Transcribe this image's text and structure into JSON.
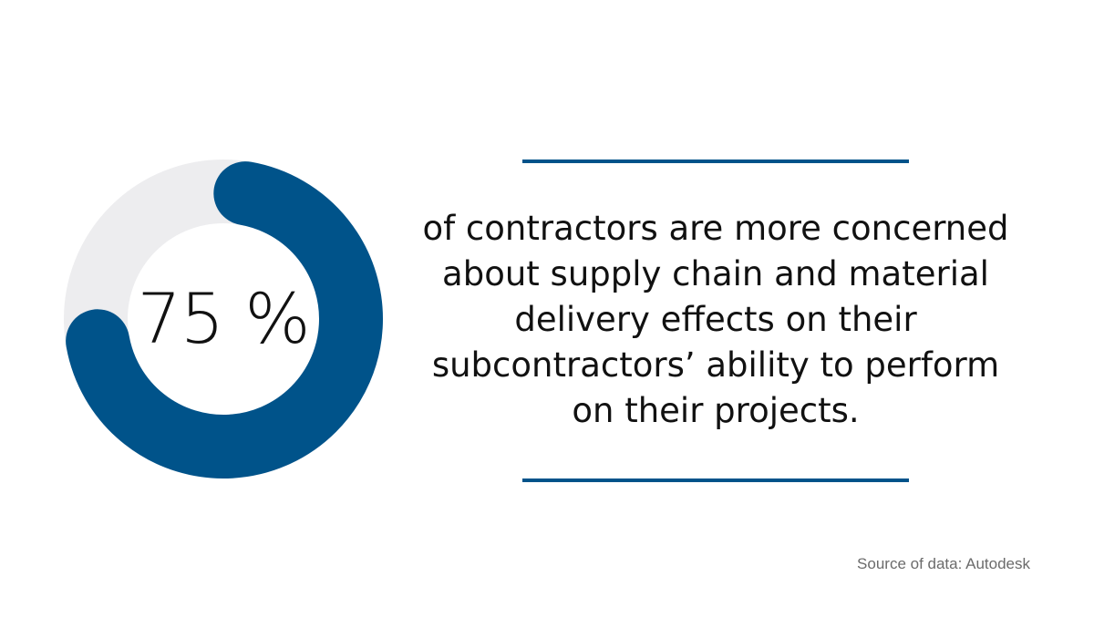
{
  "chart_data": {
    "type": "pie",
    "value_label": "75 %",
    "values": [
      75,
      25
    ],
    "colors": [
      "#00538A",
      "#EDEDEF"
    ]
  },
  "statement": {
    "lines": [
      "of contractors are more concerned",
      "about supply chain and material",
      "delivery effects on their",
      "subcontractors’ ability to perform",
      "on their projects."
    ]
  },
  "source": "Source of data: Autodesk",
  "colors": {
    "accent": "#00538A",
    "track": "#EDEDEF",
    "text": "#111111",
    "muted": "#6B6B6B"
  }
}
